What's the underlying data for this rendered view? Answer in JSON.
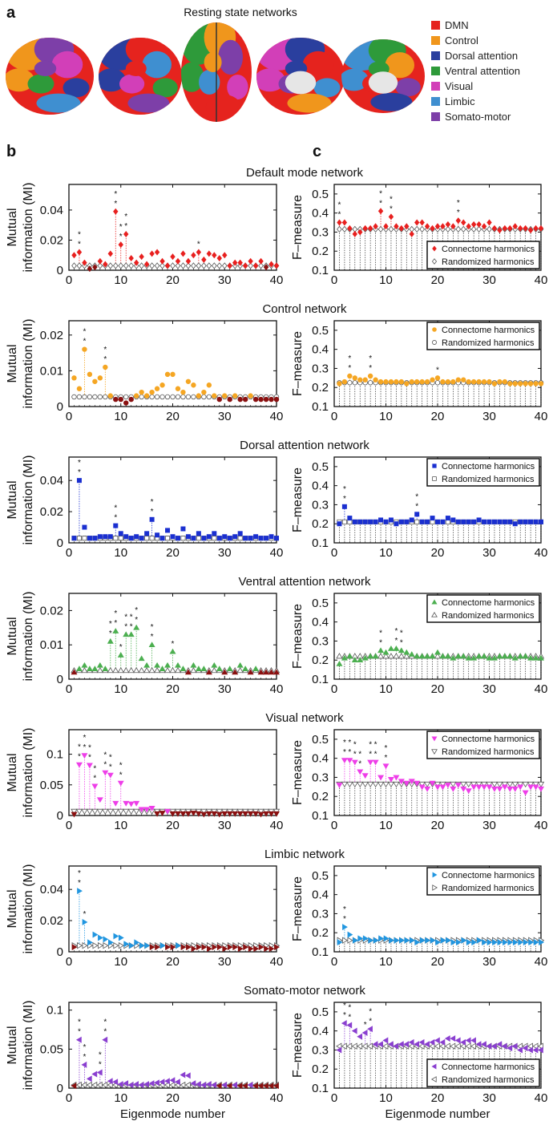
{
  "panel_a": {
    "label": "a",
    "title": "Resting state networks",
    "legend": [
      {
        "name": "DMN",
        "color": "#e5231e"
      },
      {
        "name": "Control",
        "color": "#f0961c"
      },
      {
        "name": "Dorsal attention",
        "color": "#2a3f9e"
      },
      {
        "name": "Ventral attention",
        "color": "#2e9a3a"
      },
      {
        "name": "Visual",
        "color": "#d23fb8"
      },
      {
        "name": "Limbic",
        "color": "#3f8fd0"
      },
      {
        "name": "Somato-motor",
        "color": "#7d3fa8"
      }
    ]
  },
  "panel_b_label": "b",
  "panel_c_label": "c",
  "xlabel": "Eigenmode number",
  "mi_ylabel": [
    "Mutual",
    "information (MI)"
  ],
  "f_ylabel": "F–measure",
  "legend_labels": [
    "Connectome harmonics",
    "Randomized harmonics"
  ],
  "chart_data": [
    {
      "type": "scatter",
      "title": "Default mode network",
      "color": "#e8201f",
      "marker": "diamond",
      "mi": {
        "ylim": [
          0,
          0.057
        ],
        "yticks": [
          0,
          0.02,
          0.04
        ],
        "random": 0.003,
        "values": [
          0.01,
          0.012,
          0.005,
          0.001,
          0.002,
          0.006,
          0.004,
          0.011,
          0.039,
          0.017,
          0.024,
          0.008,
          0.005,
          0.009,
          0.004,
          0.011,
          0.012,
          0.006,
          0.003,
          0.009,
          0.006,
          0.011,
          0.006,
          0.01,
          0.012,
          0.007,
          0.011,
          0.01,
          0.008,
          0.01,
          0.003,
          0.005,
          0.005,
          0.003,
          0.006,
          0.003,
          0.006,
          0.002,
          0.004,
          0.003
        ],
        "stars": [
          [
            2,
            "**"
          ],
          [
            9,
            "**"
          ],
          [
            10,
            "**"
          ],
          [
            11,
            "**"
          ],
          [
            25,
            "*"
          ]
        ]
      },
      "f": {
        "ylim": [
          0.1,
          0.55
        ],
        "yticks": [
          0.1,
          0.2,
          0.3,
          0.4,
          0.5
        ],
        "random": 0.315,
        "legend": "bottom-right",
        "values": [
          0.35,
          0.35,
          0.32,
          0.29,
          0.3,
          0.32,
          0.32,
          0.33,
          0.41,
          0.33,
          0.38,
          0.33,
          0.32,
          0.33,
          0.29,
          0.35,
          0.35,
          0.33,
          0.32,
          0.33,
          0.33,
          0.34,
          0.33,
          0.36,
          0.35,
          0.33,
          0.34,
          0.34,
          0.33,
          0.35,
          0.32,
          0.31,
          0.32,
          0.32,
          0.33,
          0.32,
          0.32,
          0.31,
          0.32,
          0.32
        ],
        "stars": [
          [
            1,
            "**"
          ],
          [
            9,
            "**"
          ],
          [
            11,
            "**"
          ],
          [
            24,
            "**"
          ]
        ]
      }
    },
    {
      "type": "scatter",
      "title": "Control network",
      "color": "#f5a623",
      "marker": "circle",
      "mi": {
        "ylim": [
          0,
          0.024
        ],
        "yticks": [
          0,
          0.01,
          0.02
        ],
        "random": 0.0027,
        "values": [
          0.008,
          0.005,
          0.016,
          0.009,
          0.007,
          0.008,
          0.011,
          0.003,
          0.002,
          0.002,
          0.001,
          0.002,
          0.003,
          0.004,
          0.003,
          0.004,
          0.005,
          0.006,
          0.009,
          0.009,
          0.005,
          0.004,
          0.007,
          0.006,
          0.003,
          0.004,
          0.006,
          0.003,
          0.002,
          0.003,
          0.002,
          0.003,
          0.002,
          0.002,
          0.003,
          0.002,
          0.002,
          0.002,
          0.002,
          0.002
        ],
        "stars": [
          [
            3,
            "**"
          ],
          [
            7,
            "**"
          ]
        ]
      },
      "f": {
        "ylim": [
          0.1,
          0.55
        ],
        "yticks": [
          0.1,
          0.2,
          0.3,
          0.4,
          0.5
        ],
        "random": 0.225,
        "legend": "top-right",
        "values": [
          0.22,
          0.23,
          0.26,
          0.25,
          0.24,
          0.24,
          0.26,
          0.24,
          0.23,
          0.23,
          0.23,
          0.23,
          0.23,
          0.22,
          0.23,
          0.23,
          0.23,
          0.23,
          0.24,
          0.25,
          0.23,
          0.23,
          0.23,
          0.24,
          0.24,
          0.23,
          0.23,
          0.23,
          0.23,
          0.23,
          0.22,
          0.23,
          0.23,
          0.22,
          0.22,
          0.22,
          0.22,
          0.22,
          0.22,
          0.22
        ],
        "stars": [
          [
            3,
            "**"
          ],
          [
            7,
            "**"
          ],
          [
            20,
            "*"
          ]
        ]
      }
    },
    {
      "type": "scatter",
      "title": "Dorsal attention network",
      "color": "#1a2fd0",
      "marker": "square",
      "mi": {
        "ylim": [
          0,
          0.055
        ],
        "yticks": [
          0,
          0.02,
          0.04
        ],
        "random": 0.003,
        "values": [
          0.003,
          0.04,
          0.01,
          0.003,
          0.003,
          0.004,
          0.004,
          0.004,
          0.011,
          0.006,
          0.004,
          0.003,
          0.004,
          0.003,
          0.006,
          0.015,
          0.005,
          0.003,
          0.008,
          0.004,
          0.003,
          0.009,
          0.004,
          0.003,
          0.006,
          0.003,
          0.004,
          0.006,
          0.003,
          0.004,
          0.003,
          0.004,
          0.006,
          0.003,
          0.003,
          0.004,
          0.003,
          0.003,
          0.004,
          0.003
        ],
        "stars": [
          [
            2,
            "**"
          ],
          [
            9,
            "**"
          ],
          [
            16,
            "**"
          ]
        ]
      },
      "f": {
        "ylim": [
          0.1,
          0.55
        ],
        "yticks": [
          0.1,
          0.2,
          0.3,
          0.4,
          0.5
        ],
        "random": 0.21,
        "legend": "top-right",
        "values": [
          0.2,
          0.29,
          0.23,
          0.21,
          0.21,
          0.21,
          0.21,
          0.21,
          0.22,
          0.21,
          0.22,
          0.2,
          0.21,
          0.21,
          0.22,
          0.25,
          0.21,
          0.21,
          0.23,
          0.21,
          0.21,
          0.23,
          0.22,
          0.21,
          0.21,
          0.21,
          0.21,
          0.22,
          0.21,
          0.21,
          0.21,
          0.21,
          0.21,
          0.21,
          0.2,
          0.21,
          0.21,
          0.21,
          0.21,
          0.21
        ],
        "stars": [
          [
            2,
            "**"
          ],
          [
            16,
            "**"
          ]
        ]
      }
    },
    {
      "type": "scatter",
      "title": "Ventral attention network",
      "color": "#4caf50",
      "marker": "triangle-up",
      "mi": {
        "ylim": [
          0,
          0.025
        ],
        "yticks": [
          0,
          0.01,
          0.02
        ],
        "random": 0.0025,
        "values": [
          0.002,
          0.003,
          0.004,
          0.003,
          0.003,
          0.004,
          0.003,
          0.011,
          0.014,
          0.007,
          0.013,
          0.013,
          0.015,
          0.006,
          0.004,
          0.01,
          0.004,
          0.003,
          0.004,
          0.008,
          0.004,
          0.003,
          0.002,
          0.004,
          0.003,
          0.003,
          0.002,
          0.004,
          0.003,
          0.002,
          0.003,
          0.002,
          0.004,
          0.003,
          0.002,
          0.003,
          0.002,
          0.002,
          0.002,
          0.002
        ],
        "stars": [
          [
            8,
            "**"
          ],
          [
            9,
            "**"
          ],
          [
            10,
            "*"
          ],
          [
            11,
            "**"
          ],
          [
            12,
            "**"
          ],
          [
            13,
            "**"
          ],
          [
            16,
            "**"
          ],
          [
            20,
            "*"
          ]
        ]
      },
      "f": {
        "ylim": [
          0.1,
          0.55
        ],
        "yticks": [
          0.1,
          0.2,
          0.3,
          0.4,
          0.5
        ],
        "random": 0.22,
        "legend": "top-right",
        "values": [
          0.18,
          0.21,
          0.22,
          0.2,
          0.2,
          0.21,
          0.22,
          0.22,
          0.25,
          0.24,
          0.26,
          0.26,
          0.25,
          0.24,
          0.23,
          0.22,
          0.22,
          0.22,
          0.22,
          0.24,
          0.22,
          0.22,
          0.21,
          0.22,
          0.22,
          0.21,
          0.21,
          0.22,
          0.22,
          0.21,
          0.21,
          0.22,
          0.22,
          0.22,
          0.21,
          0.22,
          0.22,
          0.21,
          0.21,
          0.21
        ],
        "stars": [
          [
            9,
            "**"
          ],
          [
            12,
            "**"
          ],
          [
            13,
            "**"
          ]
        ]
      }
    },
    {
      "type": "scatter",
      "title": "Visual network",
      "color": "#ee3ee8",
      "marker": "triangle-down",
      "mi": {
        "ylim": [
          0,
          0.14
        ],
        "yticks": [
          0,
          0.05,
          0.1
        ],
        "random": 0.007,
        "values": [
          0.002,
          0.083,
          0.098,
          0.082,
          0.048,
          0.026,
          0.07,
          0.066,
          0.02,
          0.053,
          0.02,
          0.019,
          0.02,
          0.01,
          0.01,
          0.012,
          0.003,
          0.004,
          0.007,
          0.003,
          0.003,
          0.003,
          0.003,
          0.004,
          0.003,
          0.002,
          0.003,
          0.003,
          0.002,
          0.003,
          0.003,
          0.003,
          0.003,
          0.003,
          0.003,
          0.003,
          0.002,
          0.003,
          0.003,
          0.003
        ],
        "stars": [
          [
            2,
            "**"
          ],
          [
            3,
            "**"
          ],
          [
            4,
            "**"
          ],
          [
            5,
            "**"
          ],
          [
            7,
            "**"
          ],
          [
            8,
            "**"
          ],
          [
            10,
            "**"
          ]
        ]
      },
      "f": {
        "ylim": [
          0.1,
          0.55
        ],
        "yticks": [
          0.1,
          0.2,
          0.3,
          0.4,
          0.5
        ],
        "random": 0.265,
        "legend": "top-right",
        "values": [
          0.26,
          0.39,
          0.39,
          0.38,
          0.33,
          0.31,
          0.38,
          0.38,
          0.3,
          0.36,
          0.29,
          0.3,
          0.28,
          0.27,
          0.28,
          0.27,
          0.25,
          0.24,
          0.27,
          0.25,
          0.25,
          0.26,
          0.24,
          0.26,
          0.24,
          0.23,
          0.25,
          0.25,
          0.25,
          0.25,
          0.24,
          0.24,
          0.25,
          0.24,
          0.24,
          0.25,
          0.22,
          0.25,
          0.25,
          0.24
        ],
        "stars": [
          [
            2,
            "**"
          ],
          [
            3,
            "**"
          ],
          [
            4,
            "**"
          ],
          [
            5,
            "**"
          ],
          [
            7,
            "**"
          ],
          [
            8,
            "**"
          ],
          [
            10,
            "**"
          ]
        ]
      }
    },
    {
      "type": "scatter",
      "title": "Limbic network",
      "color": "#2196e0",
      "marker": "triangle-right",
      "mi": {
        "ylim": [
          0,
          0.055
        ],
        "yticks": [
          0,
          0.02,
          0.04
        ],
        "random": 0.004,
        "values": [
          0.003,
          0.039,
          0.019,
          0.006,
          0.011,
          0.009,
          0.008,
          0.006,
          0.01,
          0.009,
          0.005,
          0.004,
          0.006,
          0.004,
          0.004,
          0.003,
          0.003,
          0.004,
          0.003,
          0.003,
          0.004,
          0.003,
          0.003,
          0.002,
          0.003,
          0.003,
          0.002,
          0.003,
          0.003,
          0.002,
          0.003,
          0.003,
          0.002,
          0.003,
          0.002,
          0.002,
          0.003,
          0.002,
          0.002,
          0.003
        ],
        "stars": [
          [
            2,
            "**"
          ],
          [
            3,
            "*"
          ]
        ]
      },
      "f": {
        "ylim": [
          0.1,
          0.55
        ],
        "yticks": [
          0.1,
          0.2,
          0.3,
          0.4,
          0.5
        ],
        "random": 0.16,
        "legend": "top-right",
        "values": [
          0.15,
          0.23,
          0.19,
          0.16,
          0.17,
          0.17,
          0.16,
          0.16,
          0.17,
          0.17,
          0.16,
          0.16,
          0.16,
          0.16,
          0.16,
          0.15,
          0.16,
          0.16,
          0.16,
          0.15,
          0.16,
          0.16,
          0.15,
          0.15,
          0.16,
          0.15,
          0.15,
          0.16,
          0.15,
          0.15,
          0.15,
          0.15,
          0.15,
          0.15,
          0.15,
          0.15,
          0.15,
          0.15,
          0.15,
          0.15
        ],
        "stars": [
          [
            2,
            "**"
          ]
        ]
      }
    },
    {
      "type": "scatter",
      "title": "Somato-motor network",
      "color": "#8a3fd0",
      "marker": "triangle-left",
      "mi": {
        "ylim": [
          0,
          0.11
        ],
        "yticks": [
          0,
          0.05,
          0.1
        ],
        "random": 0.004,
        "values": [
          0.003,
          0.062,
          0.03,
          0.012,
          0.018,
          0.02,
          0.062,
          0.009,
          0.008,
          0.005,
          0.006,
          0.004,
          0.005,
          0.004,
          0.005,
          0.006,
          0.007,
          0.008,
          0.009,
          0.01,
          0.008,
          0.017,
          0.016,
          0.006,
          0.005,
          0.004,
          0.005,
          0.004,
          0.003,
          0.004,
          0.003,
          0.004,
          0.003,
          0.003,
          0.004,
          0.003,
          0.003,
          0.003,
          0.003,
          0.003
        ],
        "stars": [
          [
            2,
            "**"
          ],
          [
            3,
            "**"
          ],
          [
            6,
            "**"
          ],
          [
            7,
            "**"
          ]
        ]
      },
      "f": {
        "ylim": [
          0.1,
          0.55
        ],
        "yticks": [
          0.1,
          0.2,
          0.3,
          0.4,
          0.5
        ],
        "random": 0.32,
        "legend": "bottom-right",
        "values": [
          0.3,
          0.44,
          0.43,
          0.4,
          0.37,
          0.39,
          0.41,
          0.33,
          0.33,
          0.35,
          0.33,
          0.32,
          0.33,
          0.33,
          0.34,
          0.33,
          0.34,
          0.33,
          0.34,
          0.35,
          0.34,
          0.36,
          0.36,
          0.35,
          0.34,
          0.35,
          0.35,
          0.33,
          0.33,
          0.32,
          0.32,
          0.33,
          0.32,
          0.31,
          0.32,
          0.3,
          0.31,
          0.3,
          0.3,
          0.3
        ],
        "stars": [
          [
            2,
            "**"
          ],
          [
            3,
            "**"
          ],
          [
            6,
            "*"
          ],
          [
            7,
            "**"
          ]
        ]
      }
    }
  ]
}
